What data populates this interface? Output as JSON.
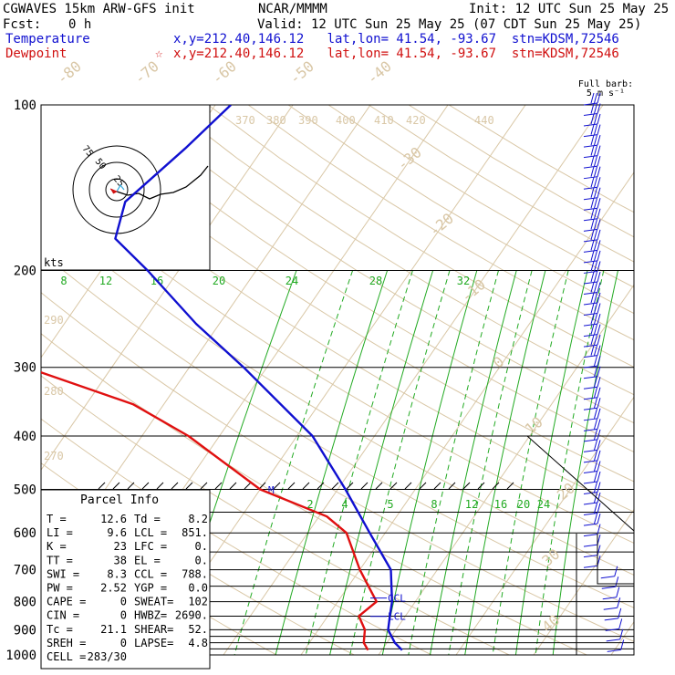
{
  "header": {
    "model": "CGWAVES 15km ARW-GFS init",
    "center": "NCAR/MMMM",
    "init": "Init: 12 UTC Sun 25 May 25",
    "fcst_label": "Fcst:",
    "fcst_value": "0 h",
    "valid": "Valid: 12 UTC Sun 25 May 25 (07 CDT Sun 25 May 25)",
    "temp_label": "Temperature",
    "temp_info": "x,y=212.40,146.12   lat,lon= 41.54, -93.67  stn=KDSM,72546",
    "dew_label": "Dewpoint",
    "dew_marker": "☆",
    "dew_info": "x,y=212.40,146.12   lat,lon= 41.54, -93.67  stn=KDSM,72546"
  },
  "barb_legend": {
    "line1": "Full barb:",
    "line2": "5 m s⁻¹"
  },
  "hodo_label": "kts",
  "hodo_ring_labels": [
    "25",
    "50",
    "75"
  ],
  "parcel_info": {
    "title": "Parcel Info",
    "rows": [
      [
        "T   =",
        "12.6",
        "Td =",
        "8.2"
      ],
      [
        "LI  =",
        "9.6",
        "LCL =",
        "851."
      ],
      [
        "K   =",
        "23",
        "LFC =",
        "0."
      ],
      [
        "TT  =",
        "38",
        "EL  =",
        "0."
      ],
      [
        "SWI =",
        "8.3",
        "CCL =",
        "788."
      ],
      [
        "PW  =",
        "2.52",
        "YGP =",
        "0.0"
      ],
      [
        "CAPE =",
        "0",
        "SWEAT=",
        "102"
      ],
      [
        "CIN  =",
        "0",
        "HWBZ=",
        "2690."
      ],
      [
        "Tc  =",
        "21.1",
        "SHEAR=",
        "52."
      ],
      [
        "SREH =",
        "0",
        "LAPSE=",
        "4.8"
      ],
      [
        "CELL =",
        "283/30",
        "",
        ""
      ]
    ]
  },
  "level_markers": {
    "ccl": "CCL",
    "lcl": "LCL",
    "m": "M"
  },
  "colors": {
    "temperature": "#1010d0",
    "dewpoint": "#e01010",
    "isotherm": "#d9c7a6",
    "mixing_ratio": "#22aa22",
    "grid": "#000000"
  },
  "chart_data": {
    "type": "line",
    "subtype": "skew-T log-P sounding",
    "y_scale": "log",
    "y_direction": "decreasing upward",
    "pressure_ticks": [
      100,
      200,
      300,
      400,
      500,
      600,
      700,
      800,
      900,
      1000
    ],
    "pressure_range": [
      100,
      1000
    ],
    "temperature_ticks_c": [
      -80,
      -70,
      -60,
      -50,
      -40,
      -30,
      -20,
      -10,
      0,
      10,
      20,
      30,
      40
    ],
    "theta_labels_k": [
      370,
      380,
      390,
      400,
      410,
      420,
      440,
      290,
      280,
      270
    ],
    "mixing_ratio_labels_upper": [
      8,
      12,
      16,
      20,
      24,
      28,
      32
    ],
    "mixing_ratio_labels_lower": [
      2,
      4,
      5,
      8,
      12,
      16,
      20,
      24
    ],
    "series": [
      {
        "name": "Temperature",
        "color": "#1010d0",
        "points": [
          {
            "p": 100,
            "t": -58
          },
          {
            "p": 120,
            "t": -60
          },
          {
            "p": 150,
            "t": -63
          },
          {
            "p": 175,
            "t": -61
          },
          {
            "p": 200,
            "t": -54
          },
          {
            "p": 250,
            "t": -43
          },
          {
            "p": 300,
            "t": -33
          },
          {
            "p": 400,
            "t": -18
          },
          {
            "p": 500,
            "t": -9
          },
          {
            "p": 600,
            "t": -2
          },
          {
            "p": 700,
            "t": 4
          },
          {
            "p": 800,
            "t": 7
          },
          {
            "p": 850,
            "t": 8
          },
          {
            "p": 900,
            "t": 9
          },
          {
            "p": 950,
            "t": 11
          },
          {
            "p": 980,
            "t": 12.6
          }
        ]
      },
      {
        "name": "Dewpoint",
        "color": "#e01010",
        "points": [
          {
            "p": 100,
            "t": -86
          },
          {
            "p": 150,
            "t": -90
          },
          {
            "p": 200,
            "t": -87
          },
          {
            "p": 250,
            "t": -76
          },
          {
            "p": 300,
            "t": -61
          },
          {
            "p": 350,
            "t": -44
          },
          {
            "p": 400,
            "t": -34
          },
          {
            "p": 500,
            "t": -20
          },
          {
            "p": 560,
            "t": -9
          },
          {
            "p": 600,
            "t": -5
          },
          {
            "p": 700,
            "t": 0
          },
          {
            "p": 800,
            "t": 5
          },
          {
            "p": 850,
            "t": 4
          },
          {
            "p": 900,
            "t": 6
          },
          {
            "p": 950,
            "t": 7
          },
          {
            "p": 980,
            "t": 8.2
          }
        ]
      }
    ],
    "wind_profile": [
      {
        "p": 100,
        "speed_ms": 35
      },
      {
        "p": 150,
        "speed_ms": 30
      },
      {
        "p": 200,
        "speed_ms": 28
      },
      {
        "p": 250,
        "speed_ms": 22
      },
      {
        "p": 300,
        "speed_ms": 20
      },
      {
        "p": 400,
        "speed_ms": 15
      },
      {
        "p": 500,
        "speed_ms": 12
      },
      {
        "p": 600,
        "speed_ms": 10
      },
      {
        "p": 700,
        "speed_ms": 8
      },
      {
        "p": 800,
        "speed_ms": 6
      },
      {
        "p": 850,
        "speed_ms": 5
      },
      {
        "p": 900,
        "speed_ms": 5
      },
      {
        "p": 950,
        "speed_ms": 4
      }
    ],
    "lcl_hpa": 851,
    "ccl_hpa": 788
  }
}
